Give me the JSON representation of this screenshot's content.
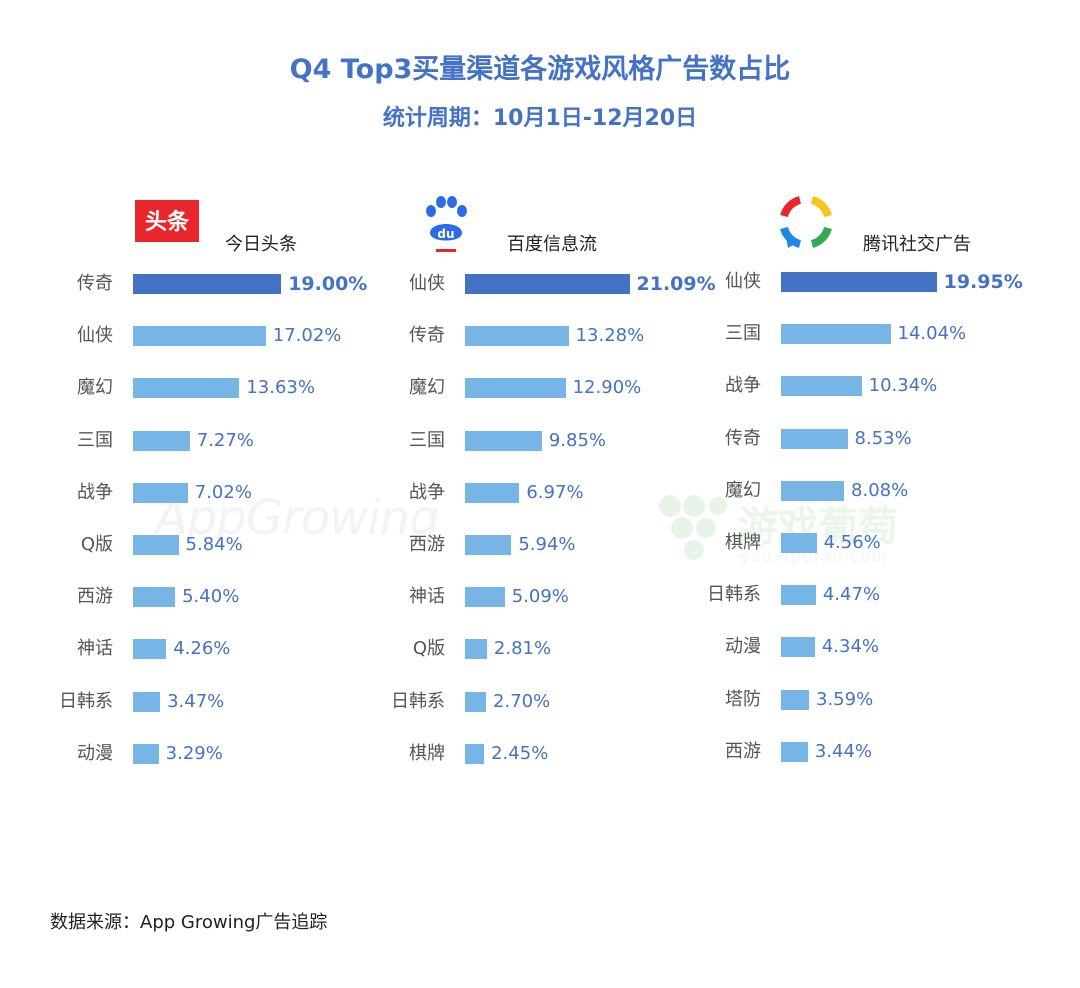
{
  "header": {
    "title": "Q4 Top3买量渠道各游戏风格广告数占比",
    "subtitle": "统计周期：10月1日-12月20日"
  },
  "watermarks": {
    "appgrowing": "AppGrowing",
    "youxi_main": "游戏葡萄",
    "youxi_sub": "youxiputao.com"
  },
  "logos": {
    "toutiao_text": "头条",
    "baidu_text": "du"
  },
  "colors": {
    "accent": "#4472c4",
    "bar": "#77b5e6",
    "toutiao_red": "#e8262b",
    "baidu_blue": "#2b6ce6"
  },
  "chart_data": [
    {
      "type": "bar",
      "orientation": "horizontal",
      "title": "今日头条",
      "categories": [
        "传奇",
        "仙侠",
        "魔幻",
        "三国",
        "战争",
        "Q版",
        "西游",
        "神话",
        "日韩系",
        "动漫"
      ],
      "values": [
        19.0,
        17.02,
        13.63,
        7.27,
        7.02,
        5.84,
        5.4,
        4.26,
        3.47,
        3.29
      ],
      "labels": [
        "19.00%",
        "17.02%",
        "13.63%",
        "7.27%",
        "7.02%",
        "5.84%",
        "5.40%",
        "4.26%",
        "3.47%",
        "3.29%"
      ],
      "unit": "%"
    },
    {
      "type": "bar",
      "orientation": "horizontal",
      "title": "百度信息流",
      "categories": [
        "仙侠",
        "传奇",
        "魔幻",
        "三国",
        "战争",
        "西游",
        "神话",
        "Q版",
        "日韩系",
        "棋牌"
      ],
      "values": [
        21.09,
        13.28,
        12.9,
        9.85,
        6.97,
        5.94,
        5.09,
        2.81,
        2.7,
        2.45
      ],
      "labels": [
        "21.09%",
        "13.28%",
        "12.90%",
        "9.85%",
        "6.97%",
        "5.94%",
        "5.09%",
        "2.81%",
        "2.70%",
        "2.45%"
      ],
      "unit": "%"
    },
    {
      "type": "bar",
      "orientation": "horizontal",
      "title": "腾讯社交广告",
      "categories": [
        "仙侠",
        "三国",
        "战争",
        "传奇",
        "魔幻",
        "棋牌",
        "日韩系",
        "动漫",
        "塔防",
        "西游"
      ],
      "values": [
        19.95,
        14.04,
        10.34,
        8.53,
        8.08,
        4.56,
        4.47,
        4.34,
        3.59,
        3.44
      ],
      "labels": [
        "19.95%",
        "14.04%",
        "10.34%",
        "8.53%",
        "8.08%",
        "4.56%",
        "4.47%",
        "4.34%",
        "3.59%",
        "3.44%"
      ],
      "unit": "%"
    }
  ],
  "footer": {
    "source": "数据来源：App Growing广告追踪"
  }
}
